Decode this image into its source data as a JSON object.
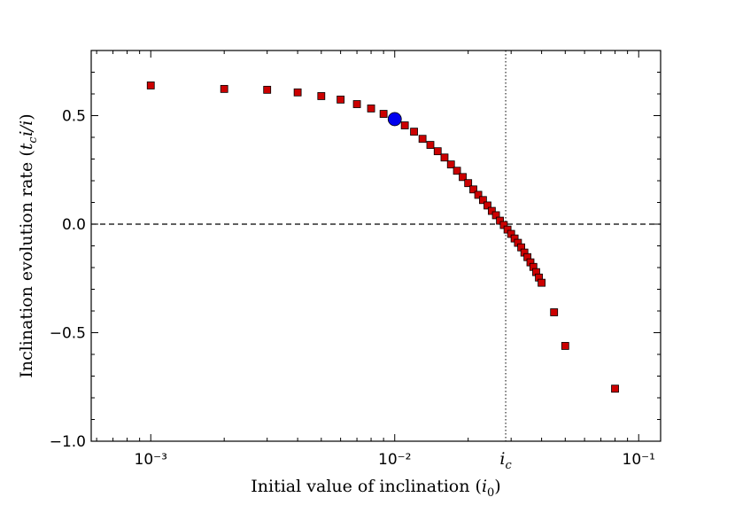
{
  "chart_data": {
    "type": "scatter",
    "xlabel": [
      "Initial value of inclination (",
      "i",
      "0",
      ")"
    ],
    "ylabel": [
      "Inclination evolution rate (",
      "t",
      "c",
      "i̇/i",
      ")"
    ],
    "log_x": true,
    "xlim": [
      0.00057,
      0.123
    ],
    "ylim": [
      -1.0,
      0.8
    ],
    "xticks": [
      {
        "value": 0.001,
        "label": "10⁻³"
      },
      {
        "value": 0.01,
        "label": "10⁻²"
      },
      {
        "value": 0.1,
        "label": "10⁻¹"
      }
    ],
    "yticks": [
      {
        "value": -1.0,
        "label": "−1.0"
      },
      {
        "value": -0.5,
        "label": "−0.5"
      },
      {
        "value": 0.0,
        "label": "0.0"
      },
      {
        "value": 0.5,
        "label": "0.5"
      }
    ],
    "minor_ticks": true,
    "hline": {
      "y": 0,
      "style": "dashed"
    },
    "vline": {
      "x": 0.0285,
      "style": "dotted",
      "label": "i",
      "label_sub": "c"
    },
    "series": [
      {
        "color": "#cc0000",
        "marker": "square",
        "x": [
          0.001,
          0.002,
          0.003,
          0.004,
          0.005,
          0.006,
          0.007,
          0.008,
          0.009,
          0.011,
          0.012,
          0.013,
          0.014,
          0.015,
          0.016,
          0.017,
          0.018,
          0.019,
          0.02,
          0.021,
          0.022,
          0.023,
          0.024,
          0.025,
          0.026,
          0.027,
          0.028,
          0.029,
          0.03,
          0.031,
          0.032,
          0.033,
          0.034,
          0.035,
          0.036,
          0.037,
          0.038,
          0.039,
          0.04,
          0.045,
          0.05,
          0.08
        ],
        "values": [
          0.639,
          0.623,
          0.619,
          0.607,
          0.59,
          0.574,
          0.553,
          0.533,
          0.508,
          0.455,
          0.426,
          0.393,
          0.365,
          0.336,
          0.307,
          0.275,
          0.246,
          0.217,
          0.189,
          0.16,
          0.135,
          0.111,
          0.086,
          0.061,
          0.041,
          0.016,
          -0.004,
          -0.025,
          -0.045,
          -0.066,
          -0.086,
          -0.107,
          -0.131,
          -0.152,
          -0.176,
          -0.197,
          -0.221,
          -0.246,
          -0.27,
          -0.406,
          -0.561,
          -0.758
        ]
      },
      {
        "color": "#0000ee",
        "marker": "circle",
        "x": [
          0.01
        ],
        "values": [
          0.484
        ]
      }
    ]
  }
}
